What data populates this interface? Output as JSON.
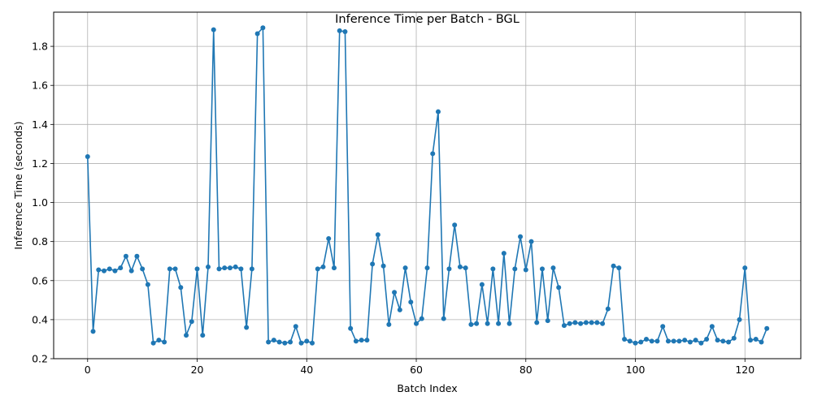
{
  "chart_data": {
    "type": "line",
    "title": "Inference Time per Batch - BGL",
    "xlabel": "Batch Index",
    "ylabel": "Inference Time (seconds)",
    "xlim": [
      -6.2,
      130.2
    ],
    "ylim": [
      0.2,
      1.975
    ],
    "xticks": [
      0,
      20,
      40,
      60,
      80,
      100,
      120
    ],
    "yticks": [
      0.2,
      0.4,
      0.6,
      0.8,
      1.0,
      1.2,
      1.4,
      1.6,
      1.8
    ],
    "grid": true,
    "line_color": "#1f77b4",
    "marker": "circle",
    "x": [
      0,
      1,
      2,
      3,
      4,
      5,
      6,
      7,
      8,
      9,
      10,
      11,
      12,
      13,
      14,
      15,
      16,
      17,
      18,
      19,
      20,
      21,
      22,
      23,
      24,
      25,
      26,
      27,
      28,
      29,
      30,
      31,
      32,
      33,
      34,
      35,
      36,
      37,
      38,
      39,
      40,
      41,
      42,
      43,
      44,
      45,
      46,
      47,
      48,
      49,
      50,
      51,
      52,
      53,
      54,
      55,
      56,
      57,
      58,
      59,
      60,
      61,
      62,
      63,
      64,
      65,
      66,
      67,
      68,
      69,
      70,
      71,
      72,
      73,
      74,
      75,
      76,
      77,
      78,
      79,
      80,
      81,
      82,
      83,
      84,
      85,
      86,
      87,
      88,
      89,
      90,
      91,
      92,
      93,
      94,
      95,
      96,
      97,
      98,
      99,
      100,
      101,
      102,
      103,
      104,
      105,
      106,
      107,
      108,
      109,
      110,
      111,
      112,
      113,
      114,
      115,
      116,
      117,
      118,
      119,
      120,
      121,
      122,
      123,
      124
    ],
    "y": [
      1.235,
      0.34,
      0.655,
      0.65,
      0.66,
      0.65,
      0.665,
      0.725,
      0.65,
      0.725,
      0.66,
      0.58,
      0.28,
      0.295,
      0.285,
      0.66,
      0.66,
      0.565,
      0.32,
      0.39,
      0.66,
      0.32,
      0.67,
      1.885,
      0.66,
      0.665,
      0.665,
      0.67,
      0.66,
      0.36,
      0.66,
      1.865,
      1.895,
      0.285,
      0.295,
      0.285,
      0.28,
      0.285,
      0.365,
      0.28,
      0.29,
      0.28,
      0.66,
      0.67,
      0.815,
      0.665,
      1.88,
      1.875,
      0.355,
      0.29,
      0.295,
      0.295,
      0.685,
      0.835,
      0.675,
      0.375,
      0.54,
      0.45,
      0.665,
      0.49,
      0.38,
      0.405,
      0.665,
      1.25,
      1.465,
      0.405,
      0.66,
      0.885,
      0.67,
      0.665,
      0.375,
      0.38,
      0.58,
      0.38,
      0.66,
      0.38,
      0.74,
      0.38,
      0.66,
      0.825,
      0.655,
      0.8,
      0.385,
      0.66,
      0.395,
      0.665,
      0.565,
      0.37,
      0.38,
      0.385,
      0.38,
      0.385,
      0.385,
      0.385,
      0.38,
      0.455,
      0.675,
      0.665,
      0.3,
      0.29,
      0.28,
      0.285,
      0.3,
      0.29,
      0.29,
      0.365,
      0.29,
      0.29,
      0.29,
      0.295,
      0.285,
      0.295,
      0.28,
      0.3,
      0.365,
      0.295,
      0.29,
      0.285,
      0.305,
      0.4,
      0.665,
      0.295,
      0.3,
      0.285,
      0.355
    ]
  }
}
